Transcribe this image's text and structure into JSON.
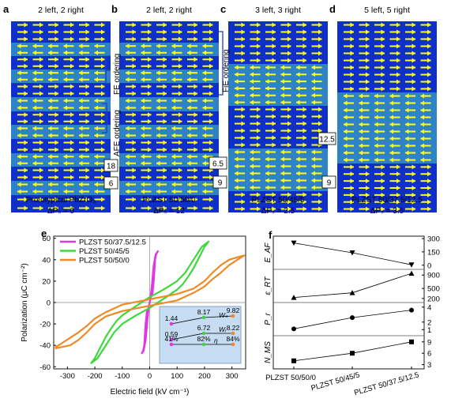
{
  "panels_top": [
    {
      "letter": "a",
      "header": "2 left, 2 right",
      "caption1": "Prototypical PbZrO₃",
      "caption2": "ΔPₛ = 0",
      "boxes": []
    },
    {
      "letter": "b",
      "header": "2 left, 2 right",
      "caption1": "PLZST 50/50/0",
      "caption2": "ΔPₛ = 12",
      "boxes": [
        "18",
        "6"
      ],
      "side_labels": [
        "FE ordering",
        "AFE ordering"
      ]
    },
    {
      "letter": "c",
      "header": "3 left, 3 right",
      "caption1": "PLZST 50/45/5",
      "caption2": "ΔPₛ = 2.5",
      "boxes": [
        "6.5",
        "9"
      ],
      "side_labels": [
        "FiE ordering"
      ]
    },
    {
      "letter": "d",
      "header": "5 left, 5 right",
      "caption1": "PLZST 50/37.5/12.5",
      "caption2": "ΔPₛ = 3.5",
      "boxes": [
        "12.5",
        "9"
      ]
    }
  ],
  "colors": {
    "dark_band": "#0f2fc9",
    "light_band": "#2e82c6",
    "arrow": "#ffff1e",
    "bracket": "#1f3fbf",
    "magenta": "#e236e6",
    "green": "#3ed83e",
    "orange": "#ef8a27",
    "inset_bg": "#c6dcf3"
  },
  "chart_data": [
    {
      "letter": "e",
      "type": "line",
      "xlabel": "Electric field (kV cm⁻¹)",
      "ylabel": "Polarization (μC cm⁻²)",
      "xlim": [
        -350,
        350
      ],
      "ylim": [
        -62,
        62
      ],
      "xticks": [
        -300,
        -200,
        -100,
        0,
        100,
        200,
        300
      ],
      "yticks": [
        -60,
        -40,
        -20,
        0,
        20,
        40,
        60
      ],
      "series": [
        {
          "name": "PLZST 50/37.5/12.5",
          "color": "magenta",
          "upper": [
            [
              -30,
              -48
            ],
            [
              -22,
              -45
            ],
            [
              -14,
              -34
            ],
            [
              -8,
              -16
            ],
            [
              -3,
              -4
            ],
            [
              3,
              4
            ],
            [
              10,
              8
            ],
            [
              15,
              20
            ],
            [
              20,
              40
            ],
            [
              24,
              45
            ],
            [
              30,
              48
            ]
          ],
          "lower": [
            [
              30,
              48
            ],
            [
              22,
              45
            ],
            [
              14,
              34
            ],
            [
              8,
              16
            ],
            [
              3,
              4
            ],
            [
              -3,
              -4
            ],
            [
              -10,
              -8
            ],
            [
              -15,
              -20
            ],
            [
              -20,
              -40
            ],
            [
              -24,
              -45
            ],
            [
              -30,
              -48
            ]
          ]
        },
        {
          "name": "PLZST 50/45/5",
          "color": "green",
          "upper": [
            [
              -215,
              -57
            ],
            [
              -200,
              -52
            ],
            [
              -180,
              -42
            ],
            [
              -160,
              -32
            ],
            [
              -140,
              -24
            ],
            [
              -120,
              -17
            ],
            [
              -100,
              -12
            ],
            [
              -60,
              -5
            ],
            [
              0,
              5
            ],
            [
              50,
              12
            ],
            [
              100,
              20
            ],
            [
              130,
              28
            ],
            [
              150,
              36
            ],
            [
              170,
              44
            ],
            [
              190,
              52
            ],
            [
              215,
              57
            ]
          ],
          "lower": [
            [
              215,
              57
            ],
            [
              200,
              52
            ],
            [
              180,
              42
            ],
            [
              160,
              32
            ],
            [
              140,
              24
            ],
            [
              120,
              17
            ],
            [
              100,
              12
            ],
            [
              60,
              5
            ],
            [
              0,
              -5
            ],
            [
              -50,
              -12
            ],
            [
              -100,
              -20
            ],
            [
              -130,
              -28
            ],
            [
              -150,
              -36
            ],
            [
              -170,
              -44
            ],
            [
              -190,
              -52
            ],
            [
              -215,
              -57
            ]
          ]
        },
        {
          "name": "PLZST 50/50/0",
          "color": "orange",
          "upper": [
            [
              -345,
              -42
            ],
            [
              -320,
              -38
            ],
            [
              -290,
              -33
            ],
            [
              -260,
              -28
            ],
            [
              -230,
              -22
            ],
            [
              -200,
              -15
            ],
            [
              -160,
              -9
            ],
            [
              -100,
              -2
            ],
            [
              0,
              3
            ],
            [
              100,
              8
            ],
            [
              160,
              13
            ],
            [
              200,
              20
            ],
            [
              230,
              28
            ],
            [
              260,
              35
            ],
            [
              290,
              40
            ],
            [
              330,
              43
            ],
            [
              345,
              44
            ]
          ],
          "lower": [
            [
              345,
              44
            ],
            [
              320,
              40
            ],
            [
              290,
              35
            ],
            [
              260,
              28
            ],
            [
              230,
              22
            ],
            [
              200,
              15
            ],
            [
              160,
              9
            ],
            [
              100,
              2
            ],
            [
              0,
              -3
            ],
            [
              -100,
              -8
            ],
            [
              -160,
              -13
            ],
            [
              -200,
              -20
            ],
            [
              -230,
              -28
            ],
            [
              -260,
              -35
            ],
            [
              -290,
              -40
            ],
            [
              -330,
              -42
            ],
            [
              -345,
              -43
            ]
          ]
        }
      ],
      "inset": {
        "points": [
          {
            "label": "1.44",
            "color": "magenta",
            "row": "Ws"
          },
          {
            "label": "8.17",
            "color": "green",
            "row": "Ws"
          },
          {
            "label": "9.82",
            "color": "orange",
            "row": "Ws"
          },
          {
            "label": "0.59",
            "color": "magenta",
            "row": "Wr"
          },
          {
            "label": "6.72",
            "color": "green",
            "row": "Wr"
          },
          {
            "label": "8.22",
            "color": "orange",
            "row": "Wr"
          },
          {
            "label": "41%",
            "color": "magenta",
            "row": "eta"
          },
          {
            "label": "82%",
            "color": "green",
            "row": "eta"
          },
          {
            "label": "84%",
            "color": "orange",
            "row": "eta"
          }
        ],
        "row_labels": {
          "Ws": "Wₛ",
          "Wr": "Wᵣ",
          "eta": "η"
        }
      }
    },
    {
      "letter": "f",
      "type": "line",
      "categories": [
        "PLZST 50/50/0",
        "PLZST 50/45/5",
        "PLZST 50/37.5/12.5"
      ],
      "rows": [
        {
          "ylabel": "E_AF",
          "marker": "triangle-down",
          "values": [
            250,
            140,
            5
          ],
          "ylim": [
            -20,
            300
          ],
          "yticks": [
            0,
            150,
            300
          ]
        },
        {
          "ylabel": "ε_RT",
          "marker": "triangle-up",
          "values": [
            230,
            370,
            950
          ],
          "ylim": [
            150,
            1000
          ],
          "yticks": [
            200,
            500,
            900
          ]
        },
        {
          "ylabel": "P_r",
          "marker": "circle",
          "values": [
            1.1,
            2.6,
            3.6
          ],
          "ylim": [
            0.5,
            4.3
          ],
          "yticks": [
            1,
            2,
            4
          ]
        },
        {
          "ylabel": "N_MS",
          "marker": "square",
          "values": [
            4,
            6,
            9
          ],
          "ylim": [
            2.5,
            10
          ],
          "yticks": [
            3,
            6,
            9
          ]
        }
      ]
    }
  ]
}
